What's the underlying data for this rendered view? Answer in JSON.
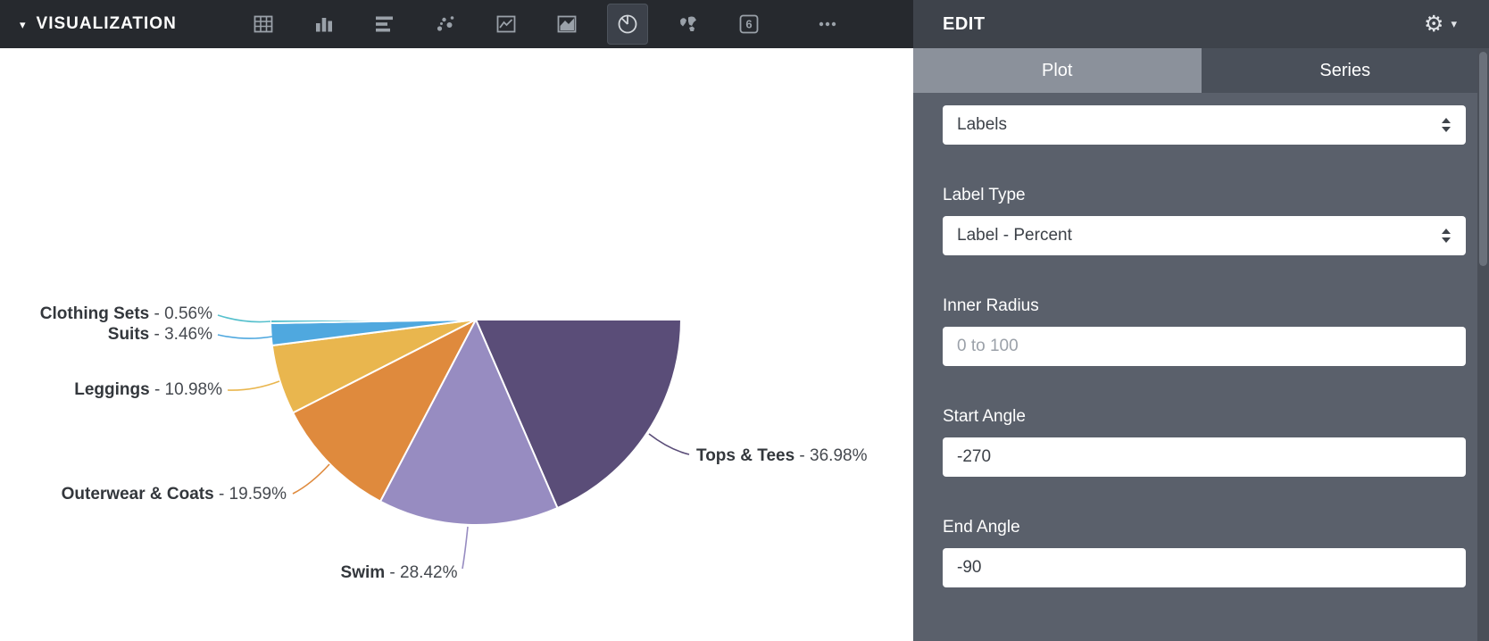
{
  "toolbar": {
    "title": "VISUALIZATION",
    "icons": [
      {
        "name": "table",
        "selected": false
      },
      {
        "name": "bar-chart",
        "selected": false
      },
      {
        "name": "horizontal-bar-chart",
        "selected": false
      },
      {
        "name": "scatter-chart",
        "selected": false
      },
      {
        "name": "line-chart",
        "selected": false
      },
      {
        "name": "area-chart",
        "selected": false
      },
      {
        "name": "pie-chart",
        "selected": true
      },
      {
        "name": "map",
        "selected": false
      },
      {
        "name": "single-value",
        "selected": false,
        "glyph": "6"
      },
      {
        "name": "more",
        "selected": false
      }
    ]
  },
  "icons": {
    "caret_down": "▾",
    "gear": "⚙"
  },
  "panel": {
    "title": "EDIT",
    "tabs": [
      {
        "label": "Plot",
        "active": true
      },
      {
        "label": "Series",
        "active": false
      }
    ],
    "fields": {
      "labels_select": {
        "value": "Labels"
      },
      "label_type": {
        "label": "Label Type",
        "value": "Label - Percent"
      },
      "inner_radius": {
        "label": "Inner Radius",
        "placeholder": "0 to 100",
        "value": ""
      },
      "start_angle": {
        "label": "Start Angle",
        "value": "-270"
      },
      "end_angle": {
        "label": "End Angle",
        "value": "-90"
      }
    }
  },
  "chart_data": {
    "type": "pie",
    "variant": "half-pie",
    "start_angle": -270,
    "end_angle": -90,
    "inner_radius": 0,
    "label_type": "Label - Percent",
    "categories": [
      "Tops & Tees",
      "Swim",
      "Outerwear & Coats",
      "Leggings",
      "Suits",
      "Clothing Sets"
    ],
    "values": [
      36.98,
      28.42,
      19.59,
      10.98,
      3.46,
      0.56
    ],
    "labels": [
      "Tops & Tees - 36.98%",
      "Swim - 28.42%",
      "Outerwear & Coats - 19.59%",
      "Leggings - 10.98%",
      "Suits - 3.46%",
      "Clothing Sets - 0.56%"
    ],
    "colors": [
      "#5a4d78",
      "#978cc1",
      "#df8a3d",
      "#e9b64e",
      "#4fa8df",
      "#56c0cd"
    ]
  }
}
